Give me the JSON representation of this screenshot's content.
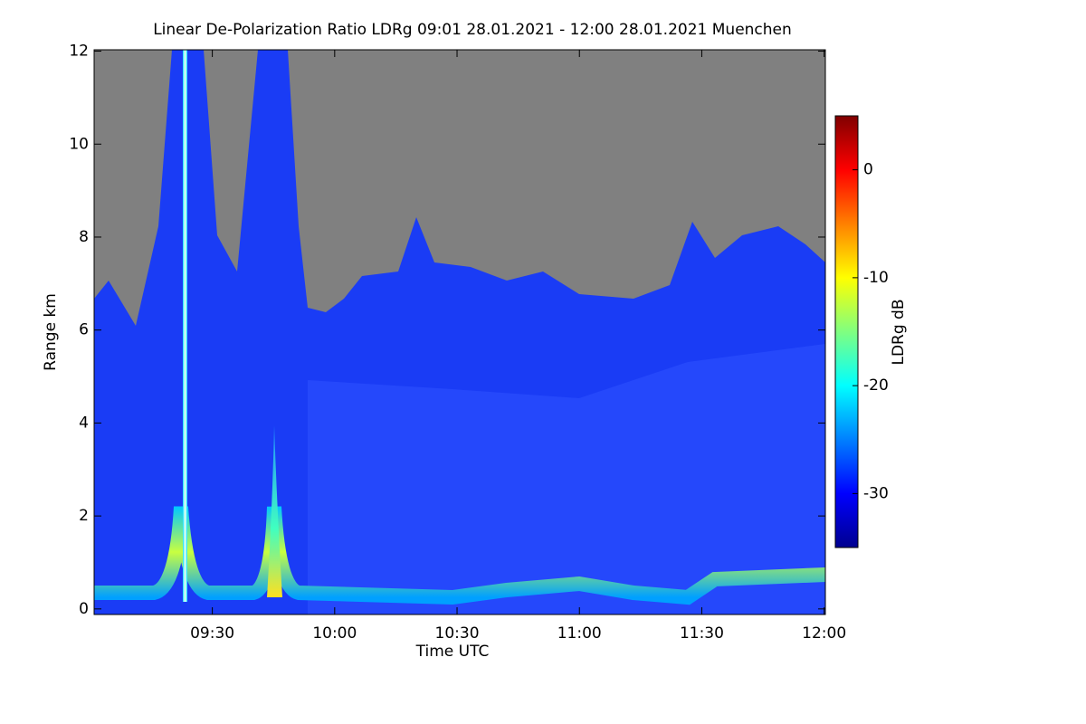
{
  "chart_data": {
    "type": "heatmap",
    "title": "Linear De-Polarization Ratio LDRg   09:01 28.01.2021 - 12:00 28.01.2021 Muenchen",
    "xlabel": "Time UTC",
    "ylabel": "Range km",
    "xlim": [
      9.017,
      12.005
    ],
    "xticks": [
      {
        "value": 9.5,
        "label": "09:30"
      },
      {
        "value": 10,
        "label": "10:00"
      },
      {
        "value": 10.5,
        "label": "10:30"
      },
      {
        "value": 11,
        "label": "11:00"
      },
      {
        "value": 11.5,
        "label": "11:30"
      },
      {
        "value": 12,
        "label": "12:00"
      }
    ],
    "ylim": [
      -0.12,
      12.03
    ],
    "yticks": [
      0,
      2,
      4,
      6,
      8,
      10,
      12
    ],
    "colorbar": {
      "label": "LDRg dB",
      "colormap": "jet",
      "zlim": [
        -35,
        5
      ],
      "zticks": [
        0,
        -10,
        -20,
        -30
      ]
    }
  }
}
